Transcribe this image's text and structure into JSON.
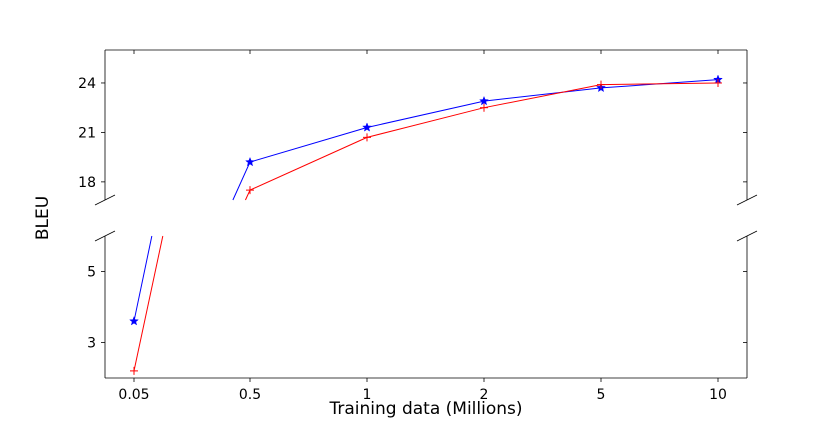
{
  "chart_data": {
    "type": "line",
    "xlabel": "Training data (Millions)",
    "ylabel": "BLEU",
    "categories": [
      "0.05",
      "0.5",
      "1",
      "2",
      "5",
      "10"
    ],
    "x": [
      0.05,
      0.5,
      1,
      2,
      5,
      10
    ],
    "y_break": true,
    "panels": {
      "top": {
        "ylim": [
          16.9,
          26.0
        ],
        "yticks": [
          "18",
          "21",
          "24"
        ]
      },
      "bottom": {
        "ylim": [
          2.0,
          6.0
        ],
        "yticks": [
          "3",
          "5"
        ]
      }
    },
    "series": [
      {
        "color": "#0000ff",
        "marker": "star",
        "values": [
          3.6,
          19.2,
          21.3,
          22.9,
          23.7,
          24.2
        ]
      },
      {
        "color": "#ff0000",
        "marker": "plus",
        "values": [
          2.2,
          17.5,
          20.7,
          22.5,
          23.9,
          24.0
        ]
      }
    ],
    "grid": false,
    "legend": "none"
  }
}
